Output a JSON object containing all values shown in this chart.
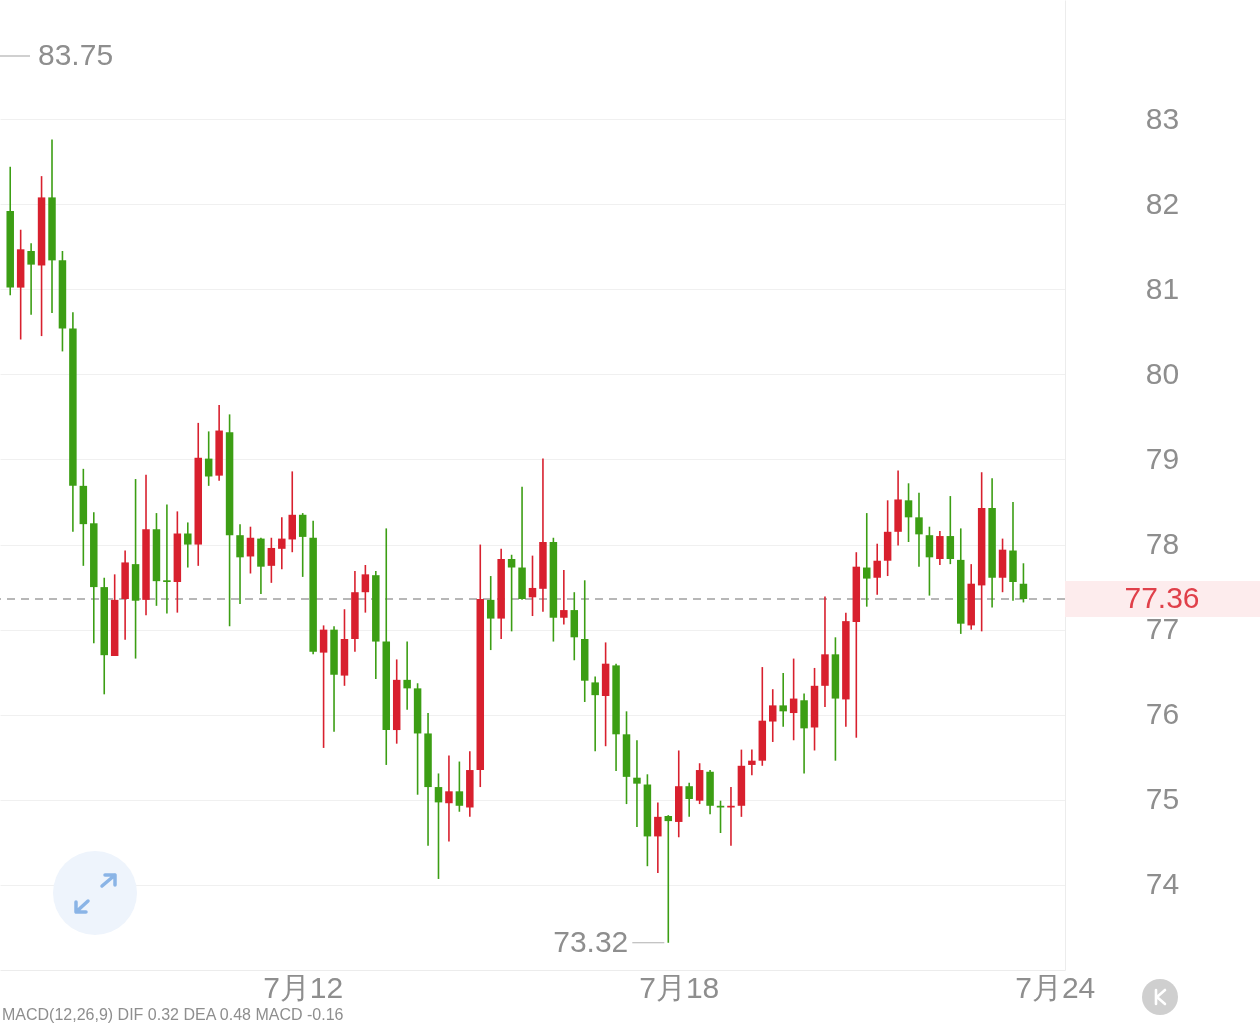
{
  "chart_data": {
    "type": "candlestick",
    "categories": [
      null,
      null,
      null,
      null,
      null,
      null,
      null,
      null,
      null,
      null,
      null,
      null,
      null,
      null,
      null,
      null,
      null,
      null,
      null,
      null,
      null,
      null,
      null,
      null,
      null,
      null,
      null,
      null,
      "7月12",
      null,
      null,
      null,
      null,
      null,
      null,
      null,
      null,
      null,
      null,
      null,
      null,
      null,
      null,
      null,
      null,
      null,
      null,
      null,
      null,
      null,
      null,
      null,
      null,
      null,
      null,
      null,
      null,
      null,
      null,
      null,
      null,
      null,
      null,
      null,
      "7月18",
      null,
      null,
      null,
      null,
      null,
      null,
      null,
      null,
      null,
      null,
      null,
      null,
      null,
      null,
      null,
      null,
      null,
      null,
      null,
      null,
      null,
      null,
      null,
      null,
      null,
      null,
      null,
      null,
      null,
      null,
      null,
      null,
      null,
      null,
      null,
      "7月24"
    ],
    "ohlc": [
      [
        81.92,
        82.44,
        80.93,
        81.02
      ],
      [
        81.02,
        81.7,
        80.41,
        81.47
      ],
      [
        81.45,
        81.54,
        80.7,
        81.29
      ],
      [
        81.28,
        82.33,
        80.45,
        82.08
      ],
      [
        82.08,
        82.76,
        80.72,
        81.34
      ],
      [
        81.34,
        81.45,
        80.27,
        80.54
      ],
      [
        80.54,
        80.73,
        78.15,
        78.69
      ],
      [
        78.69,
        78.89,
        77.75,
        78.24
      ],
      [
        78.25,
        78.38,
        76.84,
        77.5
      ],
      [
        77.5,
        77.61,
        76.24,
        76.7
      ],
      [
        76.69,
        77.65,
        76.69,
        77.35
      ],
      [
        77.36,
        77.93,
        76.88,
        77.79
      ],
      [
        77.77,
        78.77,
        76.66,
        77.34
      ],
      [
        77.35,
        78.82,
        77.17,
        78.18
      ],
      [
        78.18,
        78.37,
        77.28,
        77.57
      ],
      [
        77.58,
        78.47,
        77.19,
        77.56
      ],
      [
        77.56,
        78.39,
        77.2,
        78.13
      ],
      [
        78.13,
        78.26,
        77.73,
        78.0
      ],
      [
        78.0,
        79.43,
        77.75,
        79.02
      ],
      [
        79.01,
        79.33,
        78.69,
        78.8
      ],
      [
        78.81,
        79.64,
        78.75,
        79.34
      ],
      [
        79.32,
        79.53,
        77.04,
        78.11
      ],
      [
        78.11,
        78.24,
        77.3,
        77.85
      ],
      [
        77.86,
        78.21,
        77.66,
        78.08
      ],
      [
        78.07,
        78.08,
        77.42,
        77.74
      ],
      [
        77.75,
        78.08,
        77.55,
        77.96
      ],
      [
        77.95,
        78.32,
        77.71,
        78.07
      ],
      [
        78.06,
        78.86,
        77.91,
        78.35
      ],
      [
        78.35,
        78.37,
        77.62,
        78.09
      ],
      [
        78.08,
        78.28,
        76.71,
        76.74
      ],
      [
        76.73,
        77.05,
        75.61,
        77.0
      ],
      [
        77.0,
        77.04,
        75.8,
        76.47
      ],
      [
        76.46,
        77.24,
        76.34,
        76.89
      ],
      [
        76.89,
        77.69,
        76.74,
        77.44
      ],
      [
        77.44,
        77.76,
        77.2,
        77.65
      ],
      [
        77.64,
        77.69,
        76.42,
        76.86
      ],
      [
        76.86,
        78.19,
        75.41,
        75.82
      ],
      [
        75.82,
        76.65,
        75.66,
        76.41
      ],
      [
        76.41,
        76.86,
        76.06,
        76.31
      ],
      [
        76.31,
        76.37,
        75.06,
        75.78
      ],
      [
        75.78,
        76.02,
        74.46,
        75.15
      ],
      [
        75.15,
        75.31,
        74.07,
        74.97
      ],
      [
        74.96,
        75.52,
        74.51,
        75.1
      ],
      [
        75.1,
        75.45,
        74.86,
        74.93
      ],
      [
        74.91,
        75.57,
        74.8,
        75.35
      ],
      [
        75.35,
        78.0,
        75.15,
        77.36
      ],
      [
        77.35,
        77.63,
        76.76,
        77.13
      ],
      [
        77.13,
        77.95,
        76.89,
        77.83
      ],
      [
        77.83,
        77.88,
        76.98,
        77.73
      ],
      [
        77.73,
        78.68,
        77.35,
        77.36
      ],
      [
        77.38,
        77.87,
        77.16,
        77.49
      ],
      [
        77.48,
        79.01,
        77.21,
        78.03
      ],
      [
        78.03,
        78.08,
        76.86,
        77.14
      ],
      [
        77.14,
        77.7,
        77.06,
        77.23
      ],
      [
        77.23,
        77.44,
        76.64,
        76.91
      ],
      [
        76.89,
        77.58,
        76.15,
        76.4
      ],
      [
        76.38,
        76.45,
        75.57,
        76.23
      ],
      [
        76.22,
        76.85,
        75.63,
        76.6
      ],
      [
        76.58,
        76.6,
        75.34,
        75.77
      ],
      [
        75.77,
        76.04,
        74.95,
        75.27
      ],
      [
        75.26,
        75.7,
        74.68,
        75.19
      ],
      [
        75.18,
        75.3,
        74.22,
        74.57
      ],
      [
        74.57,
        74.97,
        74.14,
        74.8
      ],
      [
        74.81,
        74.82,
        73.32,
        74.75
      ],
      [
        74.74,
        75.58,
        74.56,
        75.16
      ],
      [
        75.16,
        75.2,
        74.8,
        75.01
      ],
      [
        74.99,
        75.43,
        74.95,
        75.35
      ],
      [
        75.33,
        75.35,
        74.83,
        74.93
      ],
      [
        74.93,
        74.99,
        74.61,
        74.91
      ],
      [
        74.91,
        75.15,
        74.46,
        74.93
      ],
      [
        74.93,
        75.59,
        74.8,
        75.4
      ],
      [
        75.41,
        75.59,
        75.29,
        75.46
      ],
      [
        75.46,
        76.56,
        75.4,
        75.93
      ],
      [
        75.92,
        76.3,
        75.68,
        76.11
      ],
      [
        76.11,
        76.49,
        75.86,
        76.04
      ],
      [
        76.02,
        76.66,
        75.7,
        76.19
      ],
      [
        76.17,
        76.25,
        75.31,
        75.84
      ],
      [
        75.85,
        76.55,
        75.58,
        76.34
      ],
      [
        76.34,
        77.39,
        76.09,
        76.71
      ],
      [
        76.71,
        76.91,
        75.46,
        76.19
      ],
      [
        76.18,
        77.2,
        75.86,
        77.1
      ],
      [
        77.09,
        77.91,
        75.73,
        77.74
      ],
      [
        77.73,
        78.37,
        77.27,
        77.6
      ],
      [
        77.61,
        78.01,
        77.41,
        77.81
      ],
      [
        77.81,
        78.52,
        77.63,
        78.15
      ],
      [
        78.15,
        78.87,
        77.99,
        78.53
      ],
      [
        78.52,
        78.72,
        78.03,
        78.32
      ],
      [
        78.32,
        78.61,
        77.74,
        78.12
      ],
      [
        78.11,
        78.21,
        77.4,
        77.85
      ],
      [
        77.83,
        78.16,
        77.76,
        78.1
      ],
      [
        78.1,
        78.57,
        77.77,
        77.83
      ],
      [
        77.82,
        78.19,
        76.95,
        77.07
      ],
      [
        77.05,
        77.77,
        77.0,
        77.54
      ],
      [
        77.52,
        78.85,
        76.98,
        78.43
      ],
      [
        78.43,
        78.78,
        77.26,
        77.61
      ],
      [
        77.61,
        78.07,
        77.44,
        77.94
      ],
      [
        77.93,
        78.5,
        77.34,
        77.56
      ],
      [
        77.54,
        77.78,
        77.32,
        77.36
      ],
      null,
      null,
      null
    ],
    "colors": [
      "#3c9e14",
      "#d8202e",
      "#3c9e14",
      "#d8202e",
      "#3c9e14",
      "#3c9e14",
      "#3c9e14",
      "#3c9e14",
      "#3c9e14",
      "#3c9e14",
      "#d8202e",
      "#d8202e",
      "#3c9e14",
      "#d8202e",
      "#3c9e14",
      "#3c9e14",
      "#d8202e",
      "#3c9e14",
      "#d8202e",
      "#3c9e14",
      "#d8202e",
      "#3c9e14",
      "#3c9e14",
      "#d8202e",
      "#3c9e14",
      "#d8202e",
      "#d8202e",
      "#d8202e",
      "#3c9e14",
      "#3c9e14",
      "#d8202e",
      "#3c9e14",
      "#d8202e",
      "#d8202e",
      "#d8202e",
      "#3c9e14",
      "#3c9e14",
      "#d8202e",
      "#3c9e14",
      "#3c9e14",
      "#3c9e14",
      "#3c9e14",
      "#d8202e",
      "#3c9e14",
      "#d8202e",
      "#d8202e",
      "#3c9e14",
      "#d8202e",
      "#3c9e14",
      "#3c9e14",
      "#d8202e",
      "#d8202e",
      "#3c9e14",
      "#d8202e",
      "#3c9e14",
      "#3c9e14",
      "#3c9e14",
      "#d8202e",
      "#3c9e14",
      "#3c9e14",
      "#3c9e14",
      "#3c9e14",
      "#d8202e",
      "#3c9e14",
      "#d8202e",
      "#3c9e14",
      "#d8202e",
      "#3c9e14",
      "#3c9e14",
      "#d8202e",
      "#d8202e",
      "#d8202e",
      "#d8202e",
      "#d8202e",
      "#3c9e14",
      "#d8202e",
      "#3c9e14",
      "#d8202e",
      "#d8202e",
      "#3c9e14",
      "#d8202e",
      "#d8202e",
      "#3c9e14",
      "#d8202e",
      "#d8202e",
      "#d8202e",
      "#3c9e14",
      "#3c9e14",
      "#3c9e14",
      "#d8202e",
      "#3c9e14",
      "#3c9e14",
      "#d8202e",
      "#d8202e",
      "#3c9e14",
      "#d8202e",
      "#3c9e14",
      "#3c9e14",
      null,
      null,
      null
    ],
    "ylim": [
      73,
      84.4
    ],
    "yticks": [
      74,
      75,
      76,
      77,
      78,
      79,
      80,
      81,
      82,
      83
    ],
    "grid": "y",
    "ref_lines": [
      {
        "axis": "y",
        "value": 77.36,
        "label": "77.36",
        "color": "#a0a0a0",
        "line_style": "dashed"
      }
    ],
    "annotations": [
      "83.75",
      "73.32",
      "MACD(12,26,9) DIF 0.32 DEA 0.48 MACD -0.16"
    ]
  }
}
